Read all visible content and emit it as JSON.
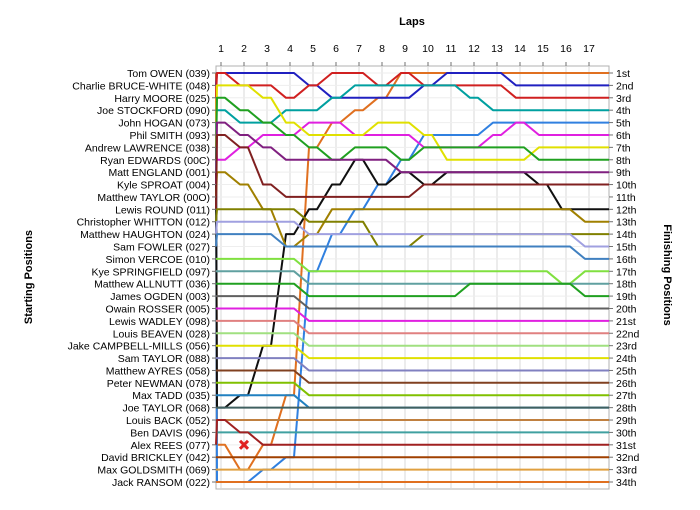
{
  "chart_data": {
    "type": "line",
    "title": "",
    "xlabel": "Laps",
    "ylabel_left": "Starting Positions",
    "ylabel_right": "Finishing Positions",
    "grid": true,
    "x": [
      1,
      2,
      3,
      4,
      5,
      6,
      7,
      8,
      9,
      10,
      11,
      12,
      13,
      14,
      15,
      16,
      17
    ],
    "drivers": [
      "Tom OWEN (039)",
      "Charlie BRUCE-WHITE (048)",
      "Harry MOORE (025)",
      "Joe STOCKFORD (090)",
      "John HOGAN (073)",
      "Phil SMITH (093)",
      "Andrew LAWRENCE (038)",
      "Ryan EDWARDS (00C)",
      "Matt ENGLAND (001)",
      "Kyle SPROAT (004)",
      "Matthew TAYLOR (00O)",
      "Lewis ROUND (011)",
      "Christopher WHITTON (012)",
      "Matthew HAUGHTON (024)",
      "Sam FOWLER (027)",
      "Simon VERCOE (010)",
      "Kye SPRINGFIELD (097)",
      "Matthew ALLNUTT (036)",
      "James OGDEN (003)",
      "Owain ROSSER (005)",
      "Lewis WADLEY (098)",
      "Louis BEAVEN (028)",
      "Jake CAMPBELL-MILLS (056)",
      "Sam TAYLOR (088)",
      "Matthew AYRES (058)",
      "Peter NEWMAN (078)",
      "Max TADD (035)",
      "Joe TAYLOR (068)",
      "Louis BACK (052)",
      "Ben DAVIS (096)",
      "Alex REES (077)",
      "David BRICKLEY (042)",
      "Max GOLDSMITH (069)",
      "Jack RANSOM (022)"
    ],
    "finishing_labels": [
      "1st",
      "2nd",
      "3rd",
      "4th",
      "5th",
      "6th",
      "7th",
      "8th",
      "9th",
      "10th",
      "11th",
      "12th",
      "13th",
      "14th",
      "15th",
      "16th",
      "17th",
      "18th",
      "19th",
      "20th",
      "21st",
      "22nd",
      "23rd",
      "24th",
      "25th",
      "26th",
      "27th",
      "28th",
      "29th",
      "30th",
      "31st",
      "32nd",
      "33rd",
      "34th"
    ],
    "series": [
      {
        "color": "#e07020",
        "values": [
          31,
          33,
          31,
          27,
          7,
          5,
          4,
          3,
          1,
          1,
          1,
          1,
          1,
          1,
          1,
          1,
          1
        ]
      },
      {
        "color": "#2020c0",
        "values": [
          1,
          1,
          1,
          1,
          2,
          3,
          3,
          3,
          3,
          2,
          1,
          1,
          1,
          2,
          2,
          2,
          2
        ]
      },
      {
        "color": "#d02020",
        "values": [
          1,
          2,
          2,
          3,
          2,
          1,
          1,
          2,
          1,
          2,
          2,
          2,
          2,
          3,
          3,
          3,
          3
        ]
      },
      {
        "color": "#00a0a0",
        "values": [
          4,
          5,
          5,
          4,
          4,
          3,
          2,
          2,
          2,
          2,
          2,
          3,
          4,
          4,
          4,
          4,
          4
        ]
      },
      {
        "color": "#3080e0",
        "values": [
          34,
          34,
          33,
          32,
          17,
          14,
          12,
          10,
          8,
          6,
          6,
          6,
          5,
          5,
          5,
          5,
          5
        ]
      },
      {
        "color": "#e020e0",
        "values": [
          8,
          7,
          6,
          6,
          5,
          5,
          6,
          6,
          6,
          7,
          7,
          7,
          6,
          5,
          6,
          6,
          6
        ]
      },
      {
        "color": "#e0e000",
        "values": [
          2,
          2,
          3,
          5,
          6,
          6,
          6,
          5,
          5,
          6,
          8,
          8,
          8,
          8,
          7,
          7,
          7
        ]
      },
      {
        "color": "#20a020",
        "values": [
          3,
          4,
          5,
          6,
          7,
          8,
          7,
          7,
          8,
          7,
          7,
          7,
          7,
          7,
          8,
          8,
          8
        ]
      },
      {
        "color": "#101010",
        "values": [
          28,
          27,
          23,
          14,
          12,
          10,
          8,
          10,
          9,
          10,
          9,
          9,
          9,
          9,
          10,
          12,
          12
        ]
      },
      {
        "color": "#802080",
        "values": [
          5,
          6,
          7,
          8,
          8,
          8,
          8,
          8,
          9,
          9,
          9,
          9,
          9,
          9,
          9,
          9,
          9
        ]
      },
      {
        "color": "#a08000",
        "values": [
          9,
          10,
          12,
          15,
          14,
          12,
          12,
          12,
          12,
          12,
          12,
          12,
          12,
          12,
          12,
          12,
          13
        ]
      },
      {
        "color": "#802020",
        "values": [
          6,
          7,
          10,
          11,
          11,
          11,
          11,
          11,
          11,
          10,
          10,
          10,
          10,
          10,
          10,
          10,
          10
        ]
      },
      {
        "color": "#808000",
        "values": [
          12,
          12,
          12,
          12,
          13,
          13,
          13,
          15,
          15,
          14,
          14,
          14,
          14,
          14,
          14,
          14,
          14
        ]
      },
      {
        "color": "#a0a0e0",
        "values": [
          13,
          13,
          13,
          13,
          14,
          14,
          14,
          14,
          14,
          14,
          14,
          14,
          14,
          14,
          14,
          14,
          15
        ]
      },
      {
        "color": "#4080c0",
        "values": [
          14,
          14,
          14,
          15,
          15,
          15,
          15,
          15,
          15,
          15,
          15,
          15,
          15,
          15,
          15,
          15,
          16
        ]
      },
      {
        "color": "#80e040",
        "values": [
          16,
          16,
          16,
          16,
          17,
          17,
          17,
          17,
          17,
          17,
          17,
          17,
          17,
          17,
          17,
          18,
          17
        ]
      },
      {
        "color": "#60a0a0",
        "values": [
          17,
          17,
          17,
          17,
          18,
          18,
          18,
          18,
          18,
          18,
          18,
          18,
          18,
          18,
          18,
          18,
          18
        ]
      },
      {
        "color": "#20a020",
        "values": [
          18,
          18,
          18,
          18,
          19,
          19,
          19,
          19,
          19,
          19,
          19,
          18,
          18,
          18,
          18,
          18,
          19
        ]
      },
      {
        "color": "#606060",
        "values": [
          19,
          19,
          19,
          19,
          20,
          20,
          20,
          20,
          20,
          20,
          20,
          20,
          20,
          20,
          20,
          20,
          20
        ]
      },
      {
        "color": "#e020e0",
        "values": [
          20,
          20,
          20,
          20,
          21,
          21,
          21,
          21,
          21,
          21,
          21,
          21,
          21,
          21,
          21,
          21,
          21
        ]
      },
      {
        "color": "#e08080",
        "values": [
          21,
          21,
          21,
          21,
          22,
          22,
          22,
          22,
          22,
          22,
          22,
          22,
          22,
          22,
          22,
          22,
          22
        ]
      },
      {
        "color": "#a0e080",
        "values": [
          22,
          22,
          22,
          22,
          23,
          23,
          23,
          23,
          23,
          23,
          23,
          23,
          23,
          23,
          23,
          23,
          23
        ]
      },
      {
        "color": "#e0e000",
        "values": [
          23,
          23,
          23,
          23,
          24,
          24,
          24,
          24,
          24,
          24,
          24,
          24,
          24,
          24,
          24,
          24,
          24
        ]
      },
      {
        "color": "#8080c0",
        "values": [
          24,
          24,
          24,
          24,
          25,
          25,
          25,
          25,
          25,
          25,
          25,
          25,
          25,
          25,
          25,
          25,
          25
        ]
      },
      {
        "color": "#804020",
        "values": [
          25,
          25,
          25,
          25,
          26,
          26,
          26,
          26,
          26,
          26,
          26,
          26,
          26,
          26,
          26,
          26,
          26
        ]
      },
      {
        "color": "#80c000",
        "values": [
          26,
          26,
          26,
          26,
          27,
          27,
          27,
          27,
          27,
          27,
          27,
          27,
          27,
          27,
          27,
          27,
          27
        ]
      },
      {
        "color": "#2080c0",
        "values": [
          27,
          27,
          27,
          27,
          28,
          28,
          28,
          28,
          28,
          28,
          28,
          28,
          28,
          28,
          28,
          28,
          28
        ]
      },
      {
        "color": "#406060",
        "values": [
          28,
          28,
          28,
          28,
          28,
          28,
          28,
          28,
          28,
          28,
          28,
          28,
          28,
          28,
          28,
          28,
          28
        ]
      },
      {
        "color": "#c08040",
        "values": [
          29,
          29,
          29,
          29,
          29,
          29,
          29,
          29,
          29,
          29,
          29,
          29,
          29,
          29,
          29,
          29,
          29
        ]
      },
      {
        "color": "#40a0a0",
        "values": [
          30,
          30,
          30,
          30,
          30,
          30,
          30,
          30,
          30,
          30,
          30,
          30,
          30,
          30,
          30,
          30,
          30
        ]
      },
      {
        "color": "#a02020",
        "values": [
          29,
          30,
          31,
          31,
          31,
          31,
          31,
          31,
          31,
          31,
          31,
          31,
          31,
          31,
          31,
          31,
          31
        ]
      },
      {
        "color": "#a04000",
        "values": [
          32,
          32,
          32,
          32,
          32,
          32,
          32,
          32,
          32,
          32,
          32,
          32,
          32,
          32,
          32,
          32,
          32
        ]
      },
      {
        "color": "#e0a040",
        "values": [
          33,
          33,
          33,
          33,
          33,
          33,
          33,
          33,
          33,
          33,
          33,
          33,
          33,
          33,
          33,
          33,
          33
        ]
      },
      {
        "color": "#e07020",
        "values": [
          34,
          34,
          34,
          34,
          34,
          34,
          34,
          34,
          34,
          34,
          34,
          34,
          34,
          34,
          34,
          34,
          34
        ]
      }
    ],
    "marker": {
      "label": "x",
      "color": "#e02020",
      "lap": 2,
      "position": 31
    }
  }
}
